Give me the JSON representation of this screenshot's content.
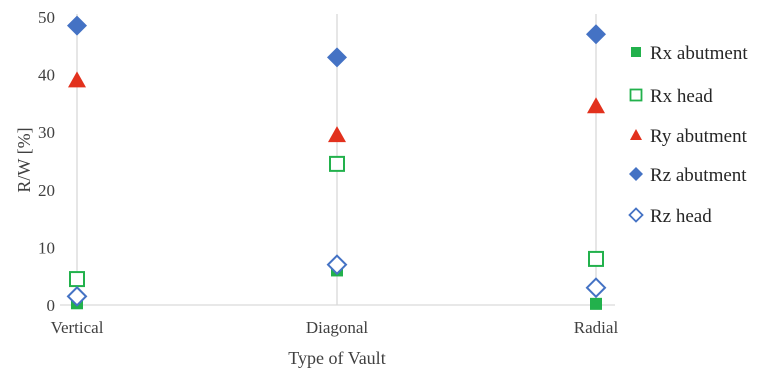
{
  "chart_data": {
    "type": "scatter",
    "categories": [
      "Vertical",
      "Diagonal",
      "Radial"
    ],
    "xlabel": "Type of Vault",
    "ylabel": "R/W [%]",
    "ylim": [
      0,
      50
    ],
    "yticks": [
      0,
      10,
      20,
      30,
      40,
      50
    ],
    "grid": "vertical",
    "legend_position": "right",
    "series": [
      {
        "name": "Rx abutment",
        "marker": "square-filled",
        "color": "#22b14c",
        "values": [
          0.3,
          6.0,
          0.2
        ]
      },
      {
        "name": "Rx head",
        "marker": "square-open",
        "color": "#22b14c",
        "values": [
          4.5,
          24.5,
          8.0
        ]
      },
      {
        "name": "Ry abutment",
        "marker": "triangle-filled",
        "color": "#e2311d",
        "values": [
          39.0,
          29.5,
          34.5
        ]
      },
      {
        "name": "Rz abutment",
        "marker": "diamond-filled",
        "color": "#4472c4",
        "values": [
          48.5,
          43.0,
          47.0
        ]
      },
      {
        "name": "Rz  head",
        "marker": "diamond-open",
        "color": "#4472c4",
        "values": [
          1.5,
          7.0,
          3.0
        ]
      }
    ]
  }
}
